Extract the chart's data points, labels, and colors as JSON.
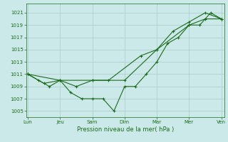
{
  "bg_color": "#cce9e9",
  "grid_color": "#b0d0d0",
  "line_color": "#1a6b1a",
  "marker_color": "#1a6b1a",
  "xlabel": "Pression niveau de la mer( hPa )",
  "ylim": [
    1004.0,
    1022.5
  ],
  "yticks": [
    1005,
    1007,
    1009,
    1011,
    1013,
    1015,
    1017,
    1019,
    1021
  ],
  "day_labels": [
    "Lun",
    "Jeu",
    "Sam",
    "Dim",
    "Mar",
    "Mer",
    "Ven"
  ],
  "day_positions": [
    0,
    1,
    2,
    3,
    4,
    5,
    6
  ],
  "xlim": [
    -0.05,
    6.1
  ],
  "series1_x": [
    0.0,
    0.33,
    0.67,
    1.0,
    1.33,
    1.67,
    2.0,
    2.33,
    2.67,
    3.0,
    3.33,
    3.67,
    4.0,
    4.33,
    4.67,
    5.0,
    5.33,
    5.67,
    6.0
  ],
  "series1_y": [
    1011,
    1010,
    1009,
    1010,
    1008,
    1007,
    1007,
    1007,
    1005,
    1009,
    1009,
    1011,
    1013,
    1016,
    1017,
    1019,
    1019,
    1021,
    1020
  ],
  "series2_x": [
    0.0,
    0.5,
    1.0,
    1.5,
    2.0,
    2.5,
    3.5,
    4.0,
    4.5,
    5.0,
    5.5,
    6.0
  ],
  "series2_y": [
    1011,
    1009.5,
    1010,
    1009,
    1010,
    1010,
    1014,
    1015,
    1018,
    1019.5,
    1021,
    1020
  ],
  "series3_x": [
    0.0,
    1.0,
    2.0,
    3.0,
    4.0,
    5.0,
    5.5,
    6.0
  ],
  "series3_y": [
    1011,
    1010,
    1010,
    1010,
    1015,
    1019,
    1020,
    1020
  ],
  "figsize": [
    3.2,
    2.0
  ],
  "dpi": 100
}
